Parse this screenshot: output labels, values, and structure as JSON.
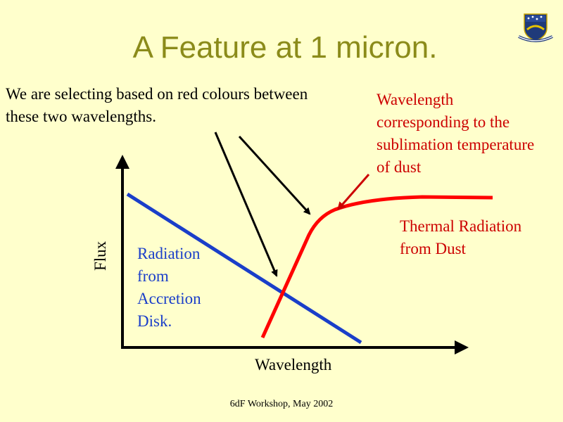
{
  "title": "A Feature at 1 micron.",
  "notes": {
    "left": "We are selecting based on red colours between these two wavelengths.",
    "right": "Wavelength corresponding to the sublimation temperature of dust"
  },
  "labels": {
    "disk": "Radiation from Accretion Disk.",
    "dust": "Thermal Radiation from Dust",
    "x_axis": "Wavelength",
    "y_axis": "Flux"
  },
  "footer": "6dF Workshop, May 2002",
  "logo": {
    "icon": "university-crest-icon"
  },
  "colors": {
    "background": "#ffffcc",
    "title": "#8b8b1a",
    "disk": "#1a3ec9",
    "dust": "#ff0000",
    "dust_text": "#cc0000",
    "axis": "#000000"
  }
}
